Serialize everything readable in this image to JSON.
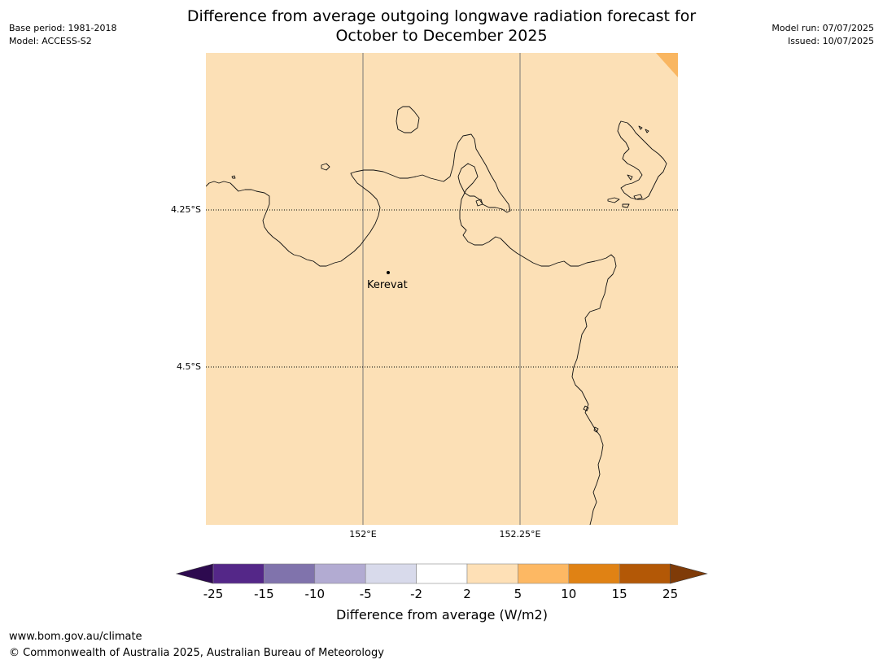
{
  "header": {
    "base_period": "Base period: 1981-2018",
    "model": "Model: ACCESS-S2",
    "model_run": "Model run: 07/07/2025",
    "issued": "Issued: 10/07/2025"
  },
  "title": {
    "line1": "Difference from average outgoing longwave radiation forecast for",
    "line2": "October to December 2025"
  },
  "map": {
    "background_color": "#fce0b6",
    "corner_color": "#f9b661",
    "lat_labels": [
      "4.25°S",
      "4.5°S"
    ],
    "lon_labels": [
      "152°E",
      "152.25°E"
    ],
    "places": [
      {
        "name": "Kerevat"
      }
    ]
  },
  "colorbar": {
    "title": "Difference from average (W/m2)",
    "ticks": [
      "-25",
      "-15",
      "-10",
      "-5",
      "-2",
      "2",
      "5",
      "10",
      "15",
      "25"
    ],
    "low_extend_color": "#2d0a4f",
    "high_extend_color": "#7f3b08",
    "bins": [
      {
        "from": -25,
        "to": -15,
        "color": "#542788"
      },
      {
        "from": -15,
        "to": -10,
        "color": "#8073ac"
      },
      {
        "from": -10,
        "to": -5,
        "color": "#b2abd2"
      },
      {
        "from": -5,
        "to": -2,
        "color": "#d8daeb"
      },
      {
        "from": -2,
        "to": 2,
        "color": "#ffffff"
      },
      {
        "from": 2,
        "to": 5,
        "color": "#fee0b6"
      },
      {
        "from": 5,
        "to": 10,
        "color": "#fdb863"
      },
      {
        "from": 10,
        "to": 15,
        "color": "#e08214"
      },
      {
        "from": 15,
        "to": 25,
        "color": "#b35806"
      }
    ]
  },
  "footer": {
    "url": "www.bom.gov.au/climate",
    "copyright": "© Commonwealth of Australia 2025, Australian Bureau of Meteorology"
  }
}
